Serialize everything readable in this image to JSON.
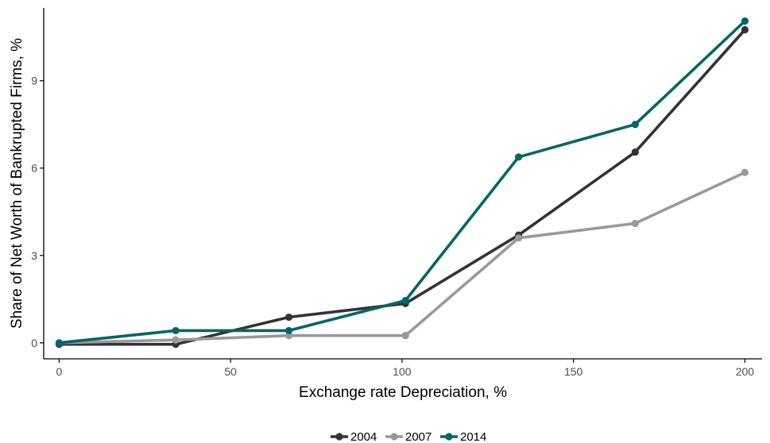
{
  "chart_data": {
    "type": "line",
    "xlabel": "Exchange rate Depreciation, %",
    "ylabel": "Share of Net Worth of Bankrupted Firms, %",
    "xlim": [
      -4.5,
      205
    ],
    "ylim": [
      -0.55,
      11.5
    ],
    "xticks": [
      0,
      50,
      100,
      150,
      200
    ],
    "yticks": [
      0,
      3,
      6,
      9
    ],
    "grid": false,
    "legend_position": "bottom",
    "x": [
      0,
      34,
      67,
      101,
      134,
      168,
      200
    ],
    "series": [
      {
        "name": "2004",
        "color": "#333333",
        "values": [
          -0.05,
          -0.05,
          0.88,
          1.35,
          3.7,
          6.55,
          10.75
        ]
      },
      {
        "name": "2007",
        "color": "#999999",
        "values": [
          0.0,
          0.1,
          0.25,
          0.25,
          3.6,
          4.1,
          5.85
        ]
      },
      {
        "name": "2014",
        "color": "#006666",
        "values": [
          0.0,
          0.42,
          0.42,
          1.45,
          6.38,
          7.5,
          11.05
        ]
      }
    ]
  }
}
